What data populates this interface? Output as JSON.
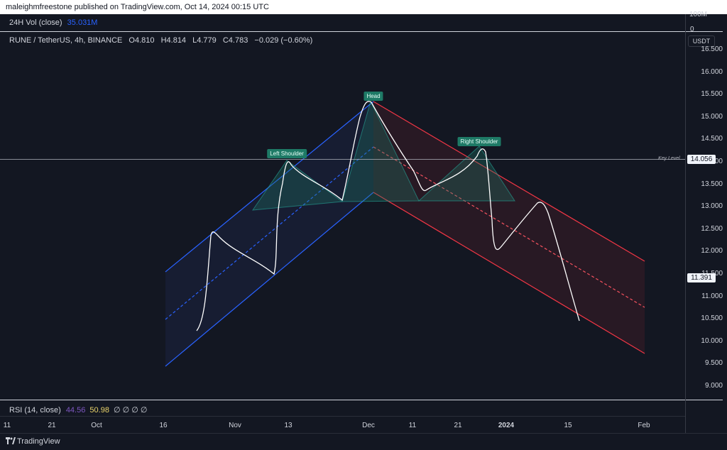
{
  "header": {
    "publisher": "maleighmfreestone published on TradingView.com, Oct 14, 2024 00:15 UTC"
  },
  "volume_pane": {
    "label": "24H Vol (close)",
    "value": "35.031M",
    "scale_top": "100M",
    "scale_zero": "0"
  },
  "main_pane": {
    "legend": "RUNE / TetherUS, 4h, BINANCE",
    "open": "O4.810",
    "high": "H4.814",
    "low": "L4.779",
    "close": "C4.783",
    "change": "−0.029 (−0.60%)",
    "currency": "USDT",
    "key_level_label": "Key Level",
    "key_level_value": "14.056",
    "current_price": "11.391"
  },
  "price_axis": [
    "16.500",
    "16.000",
    "15.500",
    "15.000",
    "14.500",
    "14.000",
    "13.500",
    "13.000",
    "12.500",
    "12.000",
    "11.500",
    "11.000",
    "10.500",
    "10.000",
    "9.500",
    "9.000"
  ],
  "time_axis": [
    {
      "label": "11",
      "bold": false
    },
    {
      "label": "21",
      "bold": false
    },
    {
      "label": "Oct",
      "bold": false
    },
    {
      "label": "16",
      "bold": false
    },
    {
      "label": "Nov",
      "bold": false
    },
    {
      "label": "13",
      "bold": false
    },
    {
      "label": "Dec",
      "bold": false
    },
    {
      "label": "11",
      "bold": false
    },
    {
      "label": "21",
      "bold": false
    },
    {
      "label": "2024",
      "bold": true
    },
    {
      "label": "15",
      "bold": false
    },
    {
      "label": "Feb",
      "bold": false
    }
  ],
  "annotations": {
    "left_shoulder": "Left Shoulder",
    "head": "Head",
    "right_shoulder": "Right Shoulder"
  },
  "rsi_pane": {
    "label": "RSI (14, close)",
    "value1": "44.56",
    "value2": "50.98",
    "na": "∅ ∅ ∅ ∅"
  },
  "footer": {
    "brand": "TradingView",
    "logo": "tradingview-logo-icon"
  },
  "colors": {
    "background": "#131722",
    "up_channel": "#2962ff",
    "down_channel": "#f23645",
    "pattern_fill": "#1e7a66",
    "drawing_line": "#ffffff"
  },
  "chart_data": {
    "type": "line",
    "symbol": "RUNE / TetherUS",
    "interval": "4h",
    "exchange": "BINANCE",
    "ylim": [
      8.9,
      16.6
    ],
    "series": [
      {
        "x": [
          "2023-10-25",
          "2023-10-27",
          "2023-11-09",
          "2023-11-11",
          "2023-11-22",
          "2023-11-24",
          "2023-12-01",
          "2023-12-10",
          "2023-12-23",
          "2023-12-26",
          "2024-01-09",
          "2024-01-18"
        ],
        "values": [
          10.2,
          12.4,
          11.45,
          14.05,
          13.2,
          13.1,
          15.35,
          13.35,
          14.25,
          12.0,
          13.1,
          10.45
        ]
      }
    ],
    "key_level": 14.056,
    "last_price": 11.391
  }
}
